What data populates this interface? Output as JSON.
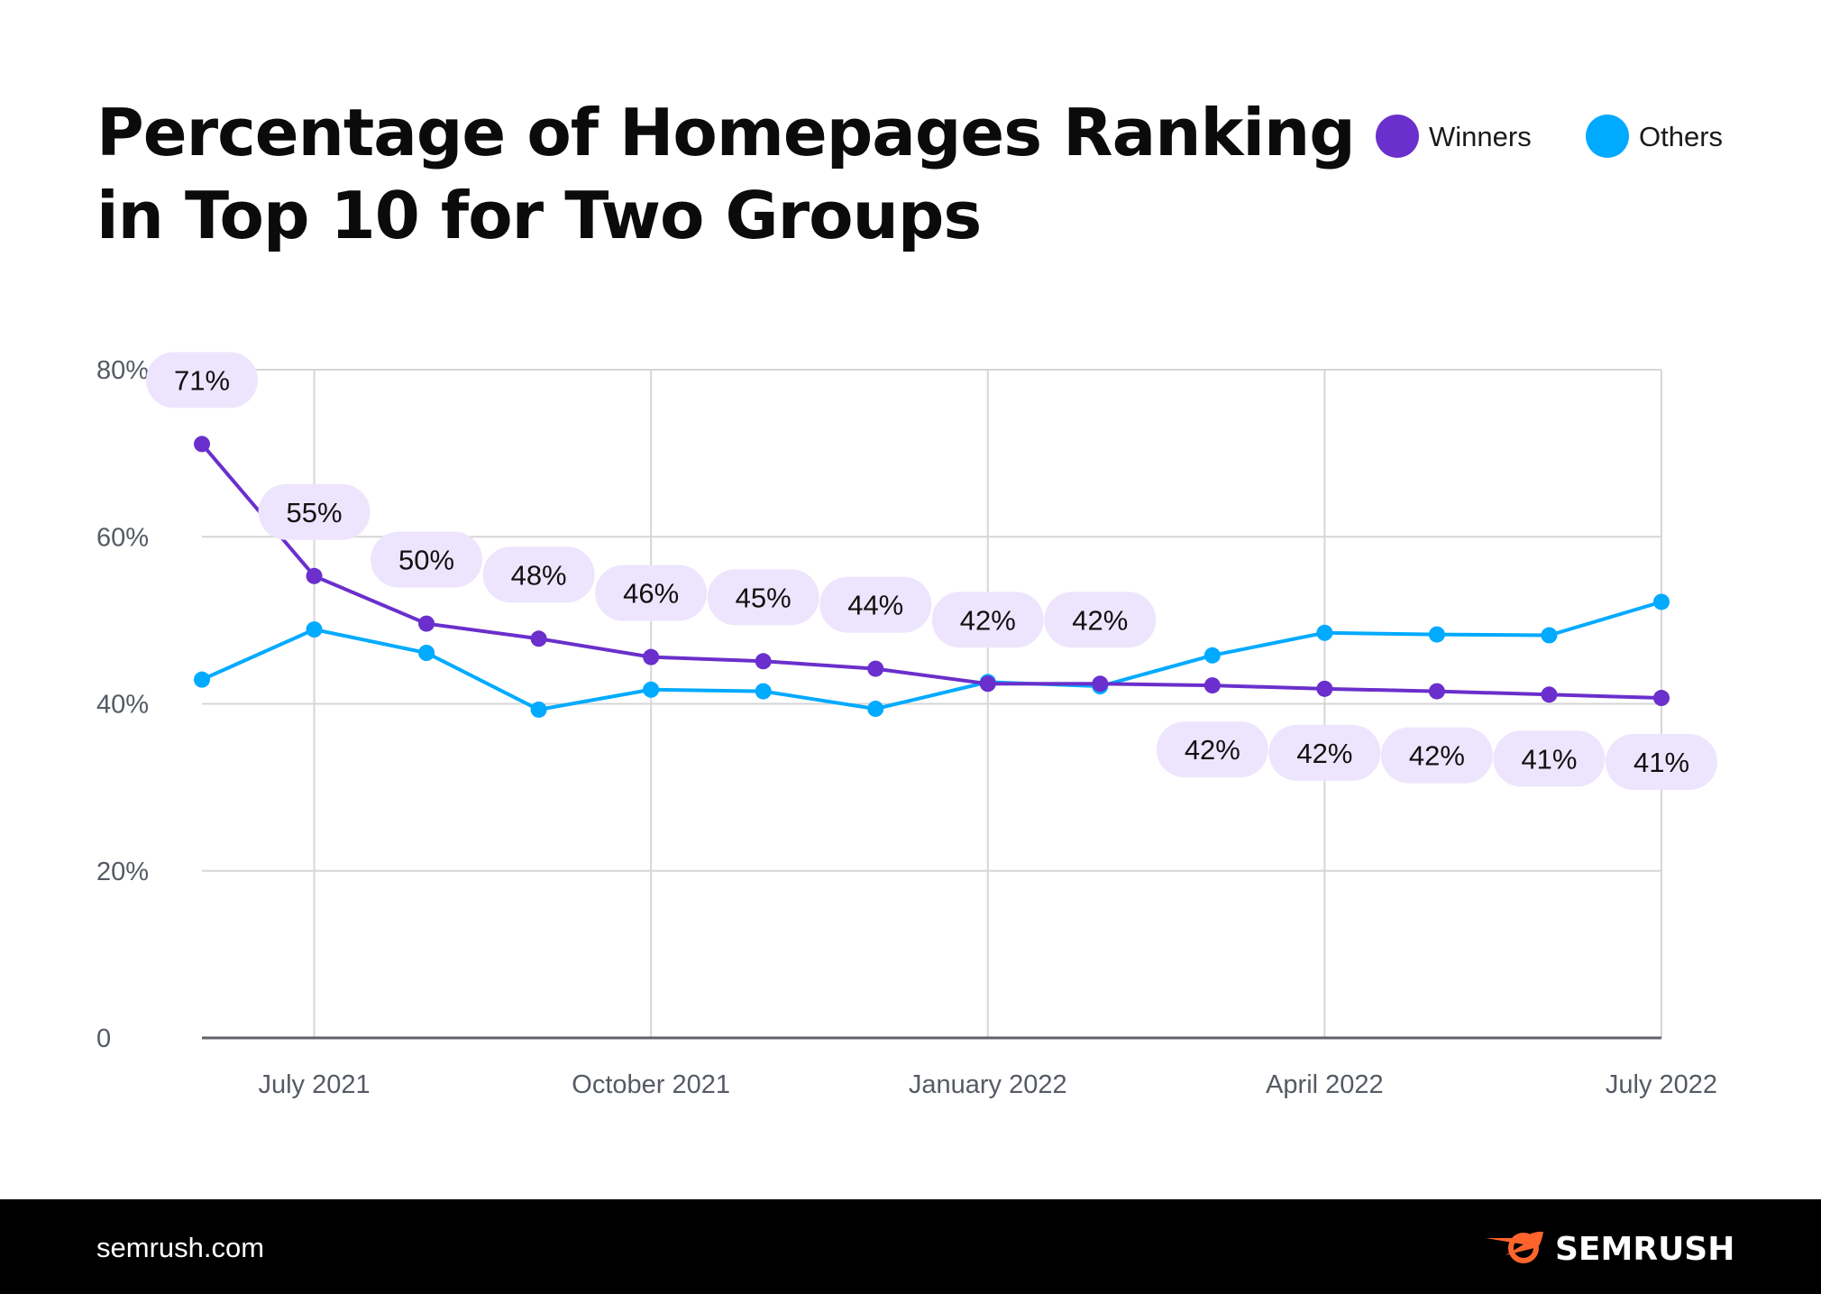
{
  "chart_data": {
    "type": "line",
    "title_lines": [
      "Percentage of Homepages Ranking",
      "in Top 10 for Two Groups"
    ],
    "x": [
      "2021-06",
      "2021-07",
      "2021-08",
      "2021-09",
      "2021-10",
      "2021-11",
      "2021-12",
      "2022-01",
      "2022-02",
      "2022-03",
      "2022-04",
      "2022-05",
      "2022-06",
      "2022-07"
    ],
    "x_ticks": [
      {
        "x": "2021-07",
        "label": "July 2021"
      },
      {
        "x": "2021-10",
        "label": "October 2021"
      },
      {
        "x": "2022-01",
        "label": "January 2022"
      },
      {
        "x": "2022-04",
        "label": "April 2022"
      },
      {
        "x": "2022-07",
        "label": "July 2022"
      }
    ],
    "y_ticks": [
      {
        "value": 0,
        "label": "0"
      },
      {
        "value": 20,
        "label": "20%"
      },
      {
        "value": 40,
        "label": "40%"
      },
      {
        "value": 60,
        "label": "60%"
      },
      {
        "value": 80,
        "label": "80%"
      }
    ],
    "ylim": [
      0,
      80
    ],
    "grid": true,
    "legend_position": "top-right",
    "series": [
      {
        "name": "Winners",
        "color": "#6a2fcc",
        "values": [
          71.1,
          55.3,
          49.6,
          47.8,
          45.6,
          45.1,
          44.2,
          42.4,
          42.4,
          42.2,
          41.8,
          41.5,
          41.1,
          40.7
        ],
        "labels": [
          "71%",
          "55%",
          "50%",
          "48%",
          "46%",
          "45%",
          "44%",
          "42%",
          "42%",
          "42%",
          "42%",
          "42%",
          "41%",
          "41%"
        ],
        "label_bg": "#ede5fd"
      },
      {
        "name": "Others",
        "color": "#00aaff",
        "values": [
          42.9,
          48.9,
          46.1,
          39.3,
          41.7,
          41.5,
          39.4,
          42.6,
          42.1,
          45.8,
          48.5,
          48.3,
          48.2,
          52.2
        ]
      }
    ]
  },
  "footer": {
    "site": "semrush.com",
    "brand": "SEMRUSH",
    "brand_color": "#ff642d"
  }
}
